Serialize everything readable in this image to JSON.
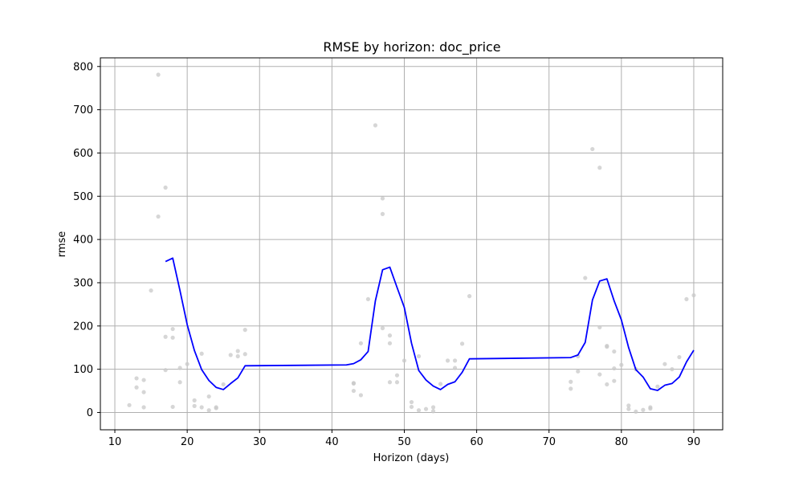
{
  "chart_data": {
    "type": "line",
    "title": "RMSE by horizon: doc_price",
    "xlabel": "Horizon (days)",
    "ylabel": "rmse",
    "xlim": [
      8,
      94
    ],
    "ylim": [
      -40,
      820
    ],
    "grid": true,
    "x_ticks": [
      10,
      20,
      30,
      40,
      50,
      60,
      70,
      80,
      90
    ],
    "y_ticks": [
      0,
      100,
      200,
      300,
      400,
      500,
      600,
      700,
      800
    ],
    "colors": {
      "line": "#0000ff",
      "scatter": "#c8c8c8",
      "grid": "#b0b0b0"
    },
    "series": [
      {
        "type": "line",
        "x": [
          17,
          18,
          19,
          20,
          21,
          22,
          23,
          24,
          25,
          26,
          27,
          28,
          42,
          43,
          44,
          45,
          46,
          47,
          48,
          49,
          50,
          51,
          52,
          53,
          54,
          55,
          56,
          57,
          58,
          59,
          73,
          74,
          75,
          76,
          77,
          78,
          79,
          80,
          81,
          82,
          83,
          84,
          85,
          86,
          87,
          88,
          89,
          90
        ],
        "y": [
          349,
          357,
          282,
          203,
          143,
          99,
          74,
          58,
          53,
          67,
          80,
          108,
          110,
          113,
          122,
          141,
          258,
          330,
          336,
          289,
          243,
          160,
          97,
          75,
          61,
          53,
          65,
          71,
          93,
          124,
          127,
          133,
          162,
          260,
          304,
          309,
          258,
          214,
          150,
          99,
          82,
          55,
          51,
          63,
          67,
          82,
          117,
          144
        ]
      },
      {
        "type": "scatter",
        "points": [
          [
            12,
            17
          ],
          [
            13,
            79
          ],
          [
            13,
            58
          ],
          [
            14,
            75
          ],
          [
            14,
            47
          ],
          [
            14,
            12
          ],
          [
            15,
            282
          ],
          [
            16,
            781
          ],
          [
            16,
            453
          ],
          [
            17,
            520
          ],
          [
            17,
            175
          ],
          [
            17,
            98
          ],
          [
            18,
            193
          ],
          [
            18,
            173
          ],
          [
            18,
            13
          ],
          [
            19,
            103
          ],
          [
            19,
            70
          ],
          [
            20,
            112
          ],
          [
            21,
            28
          ],
          [
            21,
            15
          ],
          [
            22,
            136
          ],
          [
            22,
            12
          ],
          [
            23,
            37
          ],
          [
            23,
            5
          ],
          [
            24,
            12
          ],
          [
            24,
            10
          ],
          [
            25,
            65
          ],
          [
            26,
            133
          ],
          [
            27,
            142
          ],
          [
            27,
            130
          ],
          [
            28,
            135
          ],
          [
            28,
            191
          ],
          [
            43,
            67
          ],
          [
            43,
            68
          ],
          [
            43,
            50
          ],
          [
            44,
            40
          ],
          [
            44,
            160
          ],
          [
            45,
            262
          ],
          [
            46,
            664
          ],
          [
            47,
            495
          ],
          [
            47,
            459
          ],
          [
            47,
            195
          ],
          [
            48,
            160
          ],
          [
            48,
            178
          ],
          [
            48,
            70
          ],
          [
            49,
            86
          ],
          [
            49,
            70
          ],
          [
            50,
            120
          ],
          [
            51,
            24
          ],
          [
            51,
            13
          ],
          [
            52,
            130
          ],
          [
            52,
            5
          ],
          [
            53,
            8
          ],
          [
            54,
            12
          ],
          [
            54,
            3
          ],
          [
            55,
            66
          ],
          [
            56,
            120
          ],
          [
            57,
            120
          ],
          [
            57,
            103
          ],
          [
            58,
            159
          ],
          [
            59,
            269
          ],
          [
            73,
            71
          ],
          [
            73,
            55
          ],
          [
            74,
            95
          ],
          [
            74,
            130
          ],
          [
            75,
            311
          ],
          [
            76,
            609
          ],
          [
            77,
            566
          ],
          [
            77,
            197
          ],
          [
            77,
            88
          ],
          [
            78,
            154
          ],
          [
            78,
            152
          ],
          [
            78,
            65
          ],
          [
            79,
            141
          ],
          [
            79,
            102
          ],
          [
            79,
            73
          ],
          [
            80,
            110
          ],
          [
            81,
            16
          ],
          [
            81,
            8
          ],
          [
            82,
            100
          ],
          [
            82,
            2
          ],
          [
            83,
            6
          ],
          [
            84,
            12
          ],
          [
            84,
            9
          ],
          [
            85,
            60
          ],
          [
            86,
            112
          ],
          [
            87,
            100
          ],
          [
            88,
            128
          ],
          [
            89,
            262
          ],
          [
            90,
            271
          ]
        ]
      }
    ]
  }
}
